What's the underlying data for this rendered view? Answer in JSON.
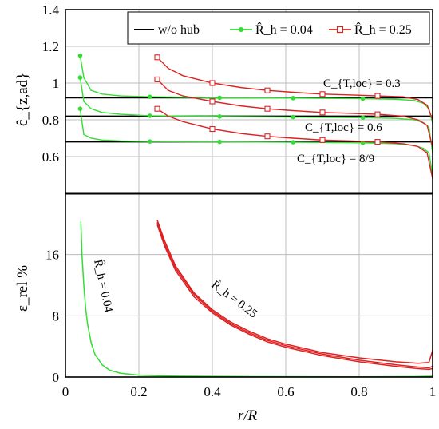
{
  "chart_data": [
    {
      "type": "line",
      "ylabel": "ĉ_{z,ad}",
      "xlim": [
        0,
        1
      ],
      "ylim": [
        0.4,
        1.4
      ],
      "x_ticks": [
        0,
        0.2,
        0.4,
        0.6,
        0.8,
        1
      ],
      "y_ticks": [
        0.6,
        0.8,
        1,
        1.2,
        1.4
      ],
      "y_tick_labels": [
        "0.6",
        "0.8",
        "1",
        "1.2",
        "1.4"
      ],
      "grid": true,
      "legend": {
        "position": "top-right",
        "entries": [
          {
            "label": "w/o hub",
            "color": "#000000",
            "marker": "none"
          },
          {
            "label": "R̂_h = 0.04",
            "color": "#33dd33",
            "marker": "circle"
          },
          {
            "label": "R̂_h = 0.25",
            "color": "#dd2222",
            "marker": "square"
          }
        ]
      },
      "annotations": [
        "C_{T,loc} = 0.3",
        "C_{T,loc} = 0.6",
        "C_{T,loc} = 8/9"
      ],
      "series": [
        {
          "name": "w/o hub",
          "color": "#000000",
          "marker": "none",
          "curves": [
            {
              "x": [
                0,
                1
              ],
              "y": [
                0.92,
                0.92
              ]
            },
            {
              "x": [
                0,
                1
              ],
              "y": [
                0.82,
                0.82
              ]
            },
            {
              "x": [
                0,
                1
              ],
              "y": [
                0.68,
                0.68
              ]
            }
          ]
        },
        {
          "name": "R̂_h = 0.04",
          "color": "#33dd33",
          "marker": "circle",
          "curves": [
            {
              "x": [
                0.04,
                0.05,
                0.07,
                0.1,
                0.15,
                0.23,
                0.42,
                0.62,
                0.81,
                0.9,
                0.95,
                0.975,
                0.99,
                1.0
              ],
              "y": [
                1.15,
                1.03,
                0.96,
                0.94,
                0.93,
                0.925,
                0.92,
                0.918,
                0.915,
                0.912,
                0.905,
                0.89,
                0.86,
                0.78
              ]
            },
            {
              "x": [
                0.04,
                0.05,
                0.07,
                0.1,
                0.15,
                0.23,
                0.42,
                0.62,
                0.81,
                0.9,
                0.95,
                0.975,
                0.99,
                1.0
              ],
              "y": [
                1.03,
                0.9,
                0.86,
                0.84,
                0.83,
                0.822,
                0.818,
                0.815,
                0.812,
                0.808,
                0.8,
                0.785,
                0.76,
                0.62
              ]
            },
            {
              "x": [
                0.04,
                0.05,
                0.07,
                0.1,
                0.15,
                0.23,
                0.42,
                0.62,
                0.81,
                0.9,
                0.95,
                0.975,
                0.99,
                1.0
              ],
              "y": [
                0.86,
                0.72,
                0.7,
                0.69,
                0.685,
                0.682,
                0.68,
                0.678,
                0.675,
                0.67,
                0.66,
                0.645,
                0.62,
                0.5
              ]
            }
          ],
          "marker_x": [
            0.04,
            0.23,
            0.42,
            0.62,
            0.81
          ]
        },
        {
          "name": "R̂_h = 0.25",
          "color": "#dd2222",
          "marker": "square",
          "curves": [
            {
              "x": [
                0.25,
                0.28,
                0.32,
                0.4,
                0.48,
                0.55,
                0.62,
                0.7,
                0.78,
                0.85,
                0.92,
                0.96,
                0.985,
                1.0
              ],
              "y": [
                1.14,
                1.08,
                1.04,
                1.0,
                0.975,
                0.96,
                0.95,
                0.94,
                0.935,
                0.93,
                0.925,
                0.91,
                0.88,
                0.8
              ]
            },
            {
              "x": [
                0.25,
                0.28,
                0.32,
                0.4,
                0.48,
                0.55,
                0.62,
                0.7,
                0.78,
                0.85,
                0.92,
                0.96,
                0.985,
                1.0
              ],
              "y": [
                1.02,
                0.96,
                0.93,
                0.9,
                0.875,
                0.86,
                0.85,
                0.84,
                0.835,
                0.83,
                0.82,
                0.8,
                0.77,
                0.65
              ]
            },
            {
              "x": [
                0.25,
                0.28,
                0.32,
                0.4,
                0.48,
                0.55,
                0.62,
                0.7,
                0.78,
                0.85,
                0.92,
                0.96,
                0.985,
                1.0
              ],
              "y": [
                0.86,
                0.82,
                0.79,
                0.75,
                0.725,
                0.71,
                0.7,
                0.69,
                0.685,
                0.68,
                0.67,
                0.655,
                0.62,
                0.48
              ]
            }
          ],
          "marker_x": [
            0.25,
            0.4,
            0.55,
            0.7,
            0.85
          ]
        }
      ]
    },
    {
      "type": "line",
      "xlabel": "r/R",
      "ylabel": "ε_rel %",
      "xlim": [
        0,
        1
      ],
      "ylim": [
        0,
        24
      ],
      "x_ticks": [
        0,
        0.2,
        0.4,
        0.6,
        0.8,
        1
      ],
      "x_tick_labels": [
        "0",
        "0.2",
        "0.4",
        "0.6",
        "0.8",
        "1"
      ],
      "y_ticks": [
        0,
        8,
        16
      ],
      "y_tick_labels": [
        "0",
        "8",
        "16"
      ],
      "grid": true,
      "annotations": [
        "R̂_h = 0.04",
        "R̂_h = 0.25"
      ],
      "series": [
        {
          "name": "R̂_h = 0.04",
          "color": "#33dd33",
          "curves": [
            {
              "x": [
                0.042,
                0.045,
                0.05,
                0.055,
                0.06,
                0.07,
                0.08,
                0.1,
                0.12,
                0.15,
                0.2,
                0.3,
                0.5,
                0.8,
                0.95,
                1.0
              ],
              "y": [
                20.3,
                16,
                12,
                9,
                7,
                4.5,
                3,
                1.6,
                0.9,
                0.5,
                0.25,
                0.12,
                0.05,
                0.03,
                0.05,
                0.1
              ]
            }
          ]
        },
        {
          "name": "R̂_h = 0.25",
          "color": "#dd2222",
          "curves": [
            {
              "x": [
                0.25,
                0.27,
                0.3,
                0.35,
                0.4,
                0.45,
                0.5,
                0.55,
                0.6,
                0.7,
                0.8,
                0.9,
                0.96,
                0.99,
                1.0
              ],
              "y": [
                20.5,
                17.8,
                14.5,
                11,
                8.8,
                7.2,
                6,
                5,
                4.3,
                3.2,
                2.5,
                2,
                1.8,
                1.9,
                3.5
              ]
            },
            {
              "x": [
                0.25,
                0.27,
                0.3,
                0.35,
                0.4,
                0.45,
                0.5,
                0.55,
                0.6,
                0.7,
                0.8,
                0.9,
                0.96,
                0.99,
                1.0
              ],
              "y": [
                20.2,
                17.4,
                14.2,
                10.8,
                8.6,
                7.0,
                5.8,
                4.8,
                4.1,
                3.0,
                2.2,
                1.6,
                1.3,
                1.2,
                1.4
              ]
            },
            {
              "x": [
                0.25,
                0.27,
                0.3,
                0.35,
                0.4,
                0.45,
                0.5,
                0.55,
                0.6,
                0.7,
                0.8,
                0.9,
                0.96,
                0.99,
                1.0
              ],
              "y": [
                19.9,
                17.1,
                13.9,
                10.5,
                8.4,
                6.8,
                5.6,
                4.6,
                3.9,
                2.8,
                2.0,
                1.4,
                1.1,
                1.0,
                1.1
              ]
            }
          ]
        }
      ]
    }
  ]
}
